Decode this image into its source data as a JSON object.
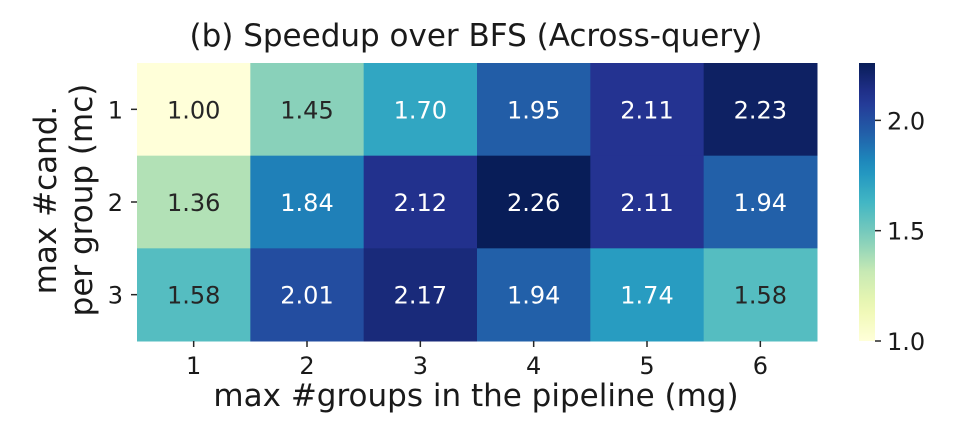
{
  "chart_data": {
    "type": "heatmap",
    "title": "(b) Speedup over BFS (Across-query)",
    "xlabel": "max #groups in the pipeline (mg)",
    "ylabel_lines": [
      "max #cand.",
      "per group (mc)"
    ],
    "x_categories": [
      "1",
      "2",
      "3",
      "4",
      "5",
      "6"
    ],
    "y_categories": [
      "1",
      "2",
      "3"
    ],
    "values": [
      [
        1.0,
        1.45,
        1.7,
        1.95,
        2.11,
        2.23
      ],
      [
        1.36,
        1.84,
        2.12,
        2.26,
        2.11,
        1.94
      ],
      [
        1.58,
        2.01,
        2.17,
        1.94,
        1.74,
        1.58
      ]
    ],
    "value_labels": [
      [
        "1.00",
        "1.45",
        "1.70",
        "1.95",
        "2.11",
        "2.23"
      ],
      [
        "1.36",
        "1.84",
        "2.12",
        "2.26",
        "2.11",
        "1.94"
      ],
      [
        "1.58",
        "2.01",
        "2.17",
        "1.94",
        "1.74",
        "1.58"
      ]
    ],
    "colorscale": "YlGnBu",
    "color_range": [
      1.0,
      2.26
    ],
    "colorbar_ticks": [
      "1.0",
      "1.5",
      "2.0"
    ],
    "colorbar_tick_values": [
      1.0,
      1.5,
      2.0
    ]
  }
}
